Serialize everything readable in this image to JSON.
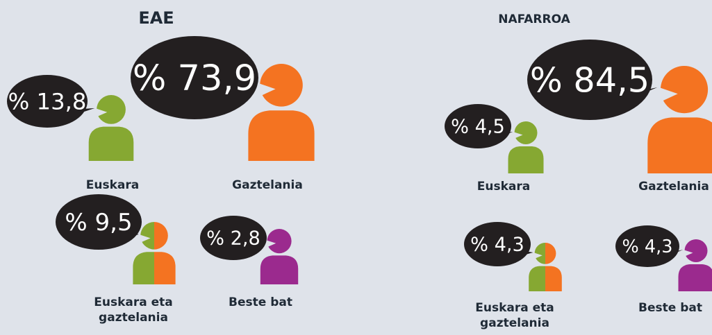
{
  "chart_data": [
    {
      "type": "pictogram",
      "title": "EAE",
      "categories": [
        "Euskara",
        "Gaztelania",
        "Euskara eta gaztelania",
        "Beste bat"
      ],
      "values": [
        13.8,
        73.9,
        9.5,
        2.8
      ],
      "value_labels": [
        "% 13,8",
        "% 73,9",
        "% 9,5",
        "% 2,8"
      ],
      "colors": [
        [
          "#86a832"
        ],
        [
          "#f47321"
        ],
        [
          "#86a832",
          "#f47321"
        ],
        [
          "#9b2a8e"
        ]
      ]
    },
    {
      "type": "pictogram",
      "title": "NAFARROA",
      "categories": [
        "Euskara",
        "Gaztelania",
        "Euskara eta gaztelania",
        "Beste bat"
      ],
      "values": [
        4.5,
        84.5,
        4.3,
        4.3
      ],
      "value_labels": [
        "% 4,5",
        "% 84,5",
        "% 4,3",
        "% 4,3"
      ],
      "colors": [
        [
          "#86a832"
        ],
        [
          "#f47321"
        ],
        [
          "#86a832",
          "#f47321"
        ],
        [
          "#9b2a8e"
        ]
      ]
    }
  ]
}
